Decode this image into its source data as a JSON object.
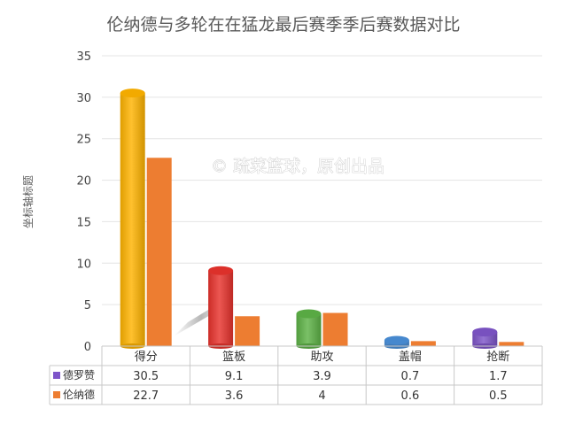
{
  "chart_data": {
    "type": "bar",
    "title": "伦纳德与多轮在在猛龙最后赛季季后赛数据对比",
    "xlabel": "",
    "ylabel": "坐标轴标题",
    "categories": [
      "得分",
      "篮板",
      "助攻",
      "盖帽",
      "抢断"
    ],
    "series": [
      {
        "name": "德罗赞",
        "values": [
          30.5,
          9.1,
          3.9,
          0.7,
          1.7
        ]
      },
      {
        "name": "伦纳德",
        "values": [
          22.7,
          3.6,
          4,
          0.6,
          0.5
        ]
      }
    ],
    "table_values": [
      [
        "30.5",
        "9.1",
        "3.9",
        "0.7",
        "1.7"
      ],
      [
        "22.7",
        "3.6",
        "4",
        "0.6",
        "0.5"
      ]
    ],
    "ylim": [
      0,
      35
    ],
    "yticks": [
      0,
      5,
      10,
      15,
      20,
      25,
      30,
      35
    ],
    "grid": true,
    "legend": "data-table-left",
    "watermark": "© 疏菜篮球，原创出品",
    "colors": {
      "series2": "#ED7D31",
      "first_bars": [
        "#FFB300",
        "#E8322C",
        "#5DB246",
        "#4A8FD9",
        "#7E55C9"
      ],
      "grid": "#E4E4E4",
      "axis": "#C8C8C8"
    }
  }
}
